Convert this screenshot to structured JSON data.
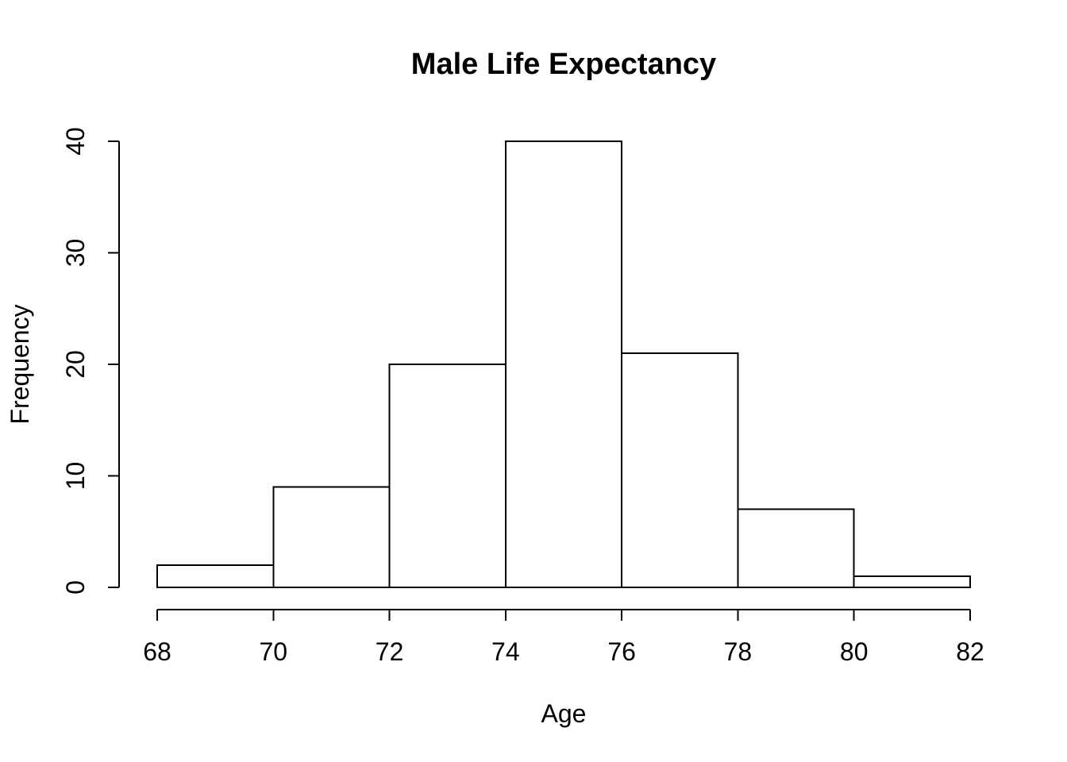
{
  "chart_data": {
    "type": "bar",
    "subtype": "histogram",
    "title": "Male Life Expectancy",
    "xlabel": "Age",
    "ylabel": "Frequency",
    "bin_edges": [
      68,
      70,
      72,
      74,
      76,
      78,
      80,
      82
    ],
    "counts": [
      2,
      9,
      20,
      40,
      21,
      7,
      1
    ],
    "x_ticks": [
      68,
      70,
      72,
      74,
      76,
      78,
      80,
      82
    ],
    "x_tick_labels": [
      "68",
      "70",
      "72",
      "74",
      "76",
      "78",
      "80",
      "82"
    ],
    "y_ticks": [
      0,
      10,
      20,
      30,
      40
    ],
    "y_tick_labels": [
      "0",
      "10",
      "20",
      "30",
      "40"
    ],
    "xlim": [
      68,
      82
    ],
    "ylim": [
      0,
      40
    ],
    "legend": "none",
    "grid": false,
    "bar_fill": "#ffffff",
    "bar_stroke": "#000000",
    "axis_color": "#000000",
    "text_color": "#000000",
    "background": "#ffffff"
  }
}
